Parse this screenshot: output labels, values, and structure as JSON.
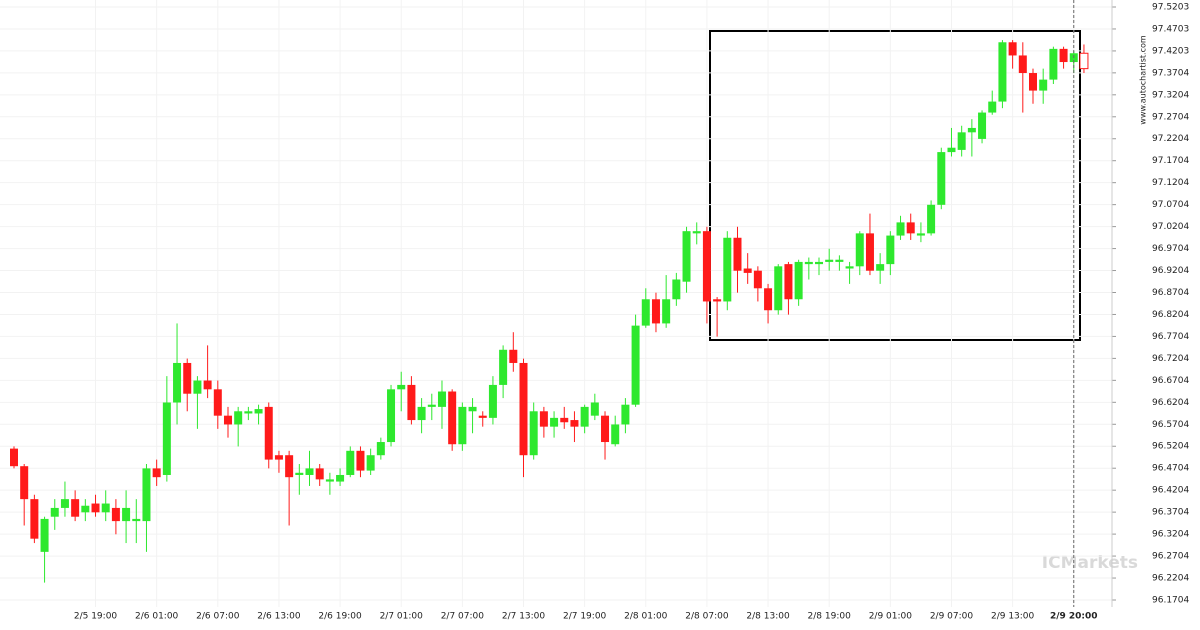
{
  "chart_data": {
    "type": "candlestick",
    "source": "www.autochartist.com",
    "watermark": "ICMarkets",
    "up_color": "#2ee82e",
    "down_color": "#ff1a1a",
    "grid": true,
    "ylim": [
      96.1704,
      97.5203
    ],
    "yticks": [
      97.5203,
      97.4703,
      97.4203,
      97.3704,
      97.3204,
      97.2704,
      97.2204,
      97.1704,
      97.1204,
      97.0704,
      97.0204,
      96.9704,
      96.9204,
      96.8704,
      96.8204,
      96.7704,
      96.7204,
      96.6704,
      96.6204,
      96.5704,
      96.5204,
      96.4704,
      96.4204,
      96.3704,
      96.3204,
      96.2704,
      96.2204,
      96.1704
    ],
    "categories": [
      null,
      null,
      null,
      null,
      null,
      null,
      null,
      null,
      "2/5 19:00",
      null,
      null,
      null,
      null,
      null,
      "2/6 01:00",
      null,
      null,
      null,
      null,
      null,
      "2/6 07:00",
      null,
      null,
      null,
      null,
      null,
      "2/6 13:00",
      null,
      null,
      null,
      null,
      null,
      "2/6 19:00",
      null,
      null,
      null,
      null,
      null,
      "2/7 01:00",
      null,
      null,
      null,
      null,
      null,
      "2/7 07:00",
      null,
      null,
      null,
      null,
      null,
      "2/7 13:00",
      null,
      null,
      null,
      null,
      null,
      "2/7 19:00",
      null,
      null,
      null,
      null,
      null,
      "2/8 01:00",
      null,
      null,
      null,
      null,
      null,
      "2/8 07:00",
      null,
      null,
      null,
      null,
      null,
      "2/8 13:00",
      null,
      null,
      null,
      null,
      null,
      "2/8 19:00",
      null,
      null,
      null,
      null,
      null,
      "2/9 01:00",
      null,
      null,
      null,
      null,
      null,
      "2/9 07:00",
      null,
      null,
      null,
      null,
      null,
      "2/9 13:00",
      null,
      null,
      null,
      null,
      null,
      "2/9 20:00",
      null
    ],
    "open": [
      96.515,
      96.475,
      96.4,
      96.28,
      96.36,
      96.38,
      96.4,
      96.37,
      96.39,
      96.37,
      96.38,
      96.35,
      96.35,
      96.35,
      96.47,
      96.455,
      96.62,
      96.71,
      96.64,
      96.67,
      96.65,
      96.59,
      96.57,
      96.595,
      96.595,
      96.61,
      96.5,
      96.5,
      96.455,
      96.455,
      96.47,
      96.44,
      96.44,
      96.455,
      96.51,
      96.465,
      96.5,
      96.53,
      96.65,
      96.66,
      96.58,
      96.61,
      96.61,
      96.645,
      96.525,
      96.6,
      96.59,
      96.585,
      96.66,
      96.74,
      96.71,
      96.5,
      96.6,
      96.565,
      96.585,
      96.58,
      96.565,
      96.59,
      96.59,
      96.525,
      96.57,
      96.615,
      96.795,
      96.855,
      96.8,
      96.855,
      96.895,
      97.005,
      97.01,
      96.855,
      96.85,
      96.995,
      96.925,
      96.92,
      96.88,
      96.83,
      96.935,
      96.855,
      96.935,
      96.935,
      96.94,
      96.94,
      96.925,
      96.93,
      97.005,
      96.92,
      96.935,
      97.0,
      97.03,
      97.0,
      97.005,
      97.07,
      97.19,
      97.195,
      97.235,
      97.22,
      97.28,
      97.305,
      97.44,
      97.41,
      97.37,
      97.33,
      97.355,
      97.425,
      97.395,
      97.415
    ],
    "high": [
      96.52,
      96.48,
      96.41,
      96.36,
      96.4,
      96.44,
      96.42,
      96.4,
      96.41,
      96.42,
      96.4,
      96.42,
      96.4,
      96.48,
      96.49,
      96.68,
      96.8,
      96.72,
      96.68,
      96.75,
      96.67,
      96.61,
      96.61,
      96.61,
      96.615,
      96.62,
      96.51,
      96.51,
      96.48,
      96.51,
      96.48,
      96.46,
      96.47,
      96.52,
      96.52,
      96.515,
      96.54,
      96.66,
      96.69,
      96.68,
      96.63,
      96.64,
      96.67,
      96.65,
      96.62,
      96.63,
      96.6,
      96.68,
      96.75,
      96.78,
      96.72,
      96.62,
      96.61,
      96.6,
      96.61,
      96.6,
      96.615,
      96.64,
      96.6,
      96.59,
      96.63,
      96.82,
      96.88,
      96.87,
      96.91,
      96.915,
      97.02,
      97.03,
      97.02,
      96.86,
      97.01,
      97.02,
      96.96,
      96.93,
      96.89,
      96.935,
      96.94,
      96.945,
      96.95,
      96.95,
      96.97,
      96.955,
      96.94,
      97.01,
      97.05,
      96.96,
      97.01,
      97.045,
      97.05,
      97.03,
      97.08,
      97.2,
      97.245,
      97.25,
      97.265,
      97.285,
      97.33,
      97.445,
      97.445,
      97.44,
      97.38,
      97.38,
      97.43,
      97.43,
      97.42,
      97.435
    ],
    "low": [
      96.47,
      96.34,
      96.3,
      96.21,
      96.33,
      96.36,
      96.35,
      96.35,
      96.36,
      96.35,
      96.32,
      96.3,
      96.3,
      96.28,
      96.43,
      96.44,
      96.57,
      96.6,
      96.56,
      96.63,
      96.56,
      96.54,
      96.52,
      96.58,
      96.57,
      96.47,
      96.46,
      96.34,
      96.41,
      96.43,
      96.43,
      96.41,
      96.43,
      96.45,
      96.45,
      96.455,
      96.49,
      96.52,
      96.6,
      96.57,
      96.55,
      96.58,
      96.56,
      96.51,
      96.51,
      96.55,
      96.565,
      96.57,
      96.63,
      96.69,
      96.45,
      96.49,
      96.54,
      96.54,
      96.56,
      96.53,
      96.55,
      96.58,
      96.49,
      96.52,
      96.55,
      96.61,
      96.79,
      96.78,
      96.79,
      96.84,
      96.87,
      96.98,
      96.8,
      96.77,
      96.83,
      96.87,
      96.89,
      96.85,
      96.8,
      96.82,
      96.82,
      96.84,
      96.9,
      96.91,
      96.92,
      96.92,
      96.89,
      96.91,
      96.91,
      96.89,
      96.91,
      96.99,
      96.99,
      96.985,
      97.0,
      97.06,
      97.18,
      97.18,
      97.18,
      97.21,
      97.275,
      97.29,
      97.38,
      97.28,
      97.3,
      97.3,
      97.345,
      97.38,
      97.37,
      97.37
    ],
    "close": [
      96.475,
      96.4,
      96.31,
      96.355,
      96.38,
      96.4,
      96.36,
      96.385,
      96.37,
      96.39,
      96.35,
      96.38,
      96.355,
      96.47,
      96.45,
      96.62,
      96.71,
      96.64,
      96.67,
      96.65,
      96.59,
      96.57,
      96.6,
      96.6,
      96.605,
      96.49,
      96.49,
      96.45,
      96.46,
      96.47,
      96.445,
      96.445,
      96.455,
      96.51,
      96.465,
      96.5,
      96.53,
      96.65,
      96.66,
      96.58,
      96.61,
      96.615,
      96.645,
      96.525,
      96.61,
      96.61,
      96.585,
      96.66,
      96.74,
      96.71,
      96.5,
      96.6,
      96.565,
      96.585,
      96.575,
      96.565,
      96.61,
      96.62,
      96.53,
      96.57,
      96.615,
      96.795,
      96.855,
      96.8,
      96.855,
      96.9,
      97.01,
      97.01,
      96.85,
      96.85,
      96.995,
      96.92,
      96.915,
      96.88,
      96.83,
      96.93,
      96.855,
      96.94,
      96.94,
      96.94,
      96.945,
      96.945,
      96.93,
      97.005,
      96.92,
      96.935,
      97.0,
      97.03,
      97.005,
      97.005,
      97.07,
      97.19,
      97.2,
      97.235,
      97.245,
      97.28,
      97.305,
      97.44,
      97.41,
      97.37,
      97.33,
      97.355,
      97.425,
      97.395,
      97.415,
      97.38
    ]
  }
}
